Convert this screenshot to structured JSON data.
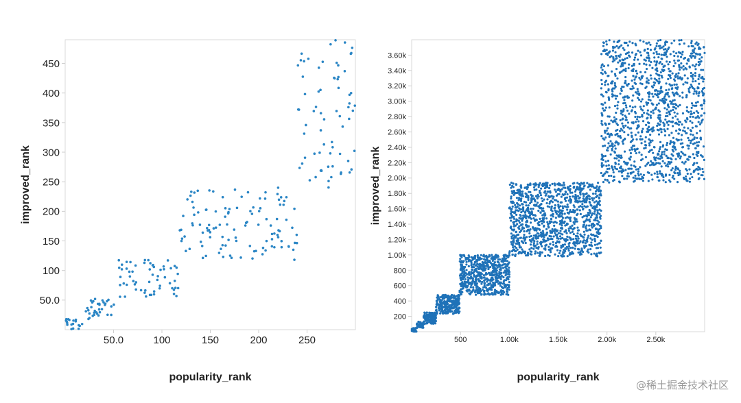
{
  "colors": {
    "point": "#2b86c5",
    "point_dark": "#1f72b8",
    "frame": "#d9d9d9",
    "tick": "#cfcfcf"
  },
  "watermark": "@稀土掘金技术社区",
  "chart_data": [
    {
      "type": "scatter",
      "xlabel": "popularity_rank",
      "ylabel": "improved_rank",
      "xlim": [
        0,
        300
      ],
      "ylim": [
        0,
        490
      ],
      "x_ticks": [
        {
          "value": 50,
          "label": "50.0"
        },
        {
          "value": 100,
          "label": "100"
        },
        {
          "value": 150,
          "label": "150"
        },
        {
          "value": 200,
          "label": "200"
        },
        {
          "value": 250,
          "label": "250"
        }
      ],
      "y_ticks": [
        {
          "value": 50,
          "label": "50.0"
        },
        {
          "value": 100,
          "label": "100"
        },
        {
          "value": 150,
          "label": "150"
        },
        {
          "value": 200,
          "label": "200"
        },
        {
          "value": 250,
          "label": "250"
        },
        {
          "value": 300,
          "label": "300"
        },
        {
          "value": 350,
          "label": "350"
        },
        {
          "value": 400,
          "label": "400"
        },
        {
          "value": 450,
          "label": "450"
        }
      ],
      "clusters": [
        {
          "x_range": [
            0,
            18
          ],
          "y_range": [
            0,
            18
          ],
          "count": 18
        },
        {
          "x_range": [
            18,
            52
          ],
          "y_range": [
            18,
            52
          ],
          "count": 34
        },
        {
          "x_range": [
            55,
            118
          ],
          "y_range": [
            55,
            118
          ],
          "count": 60
        },
        {
          "x_range": [
            118,
            240
          ],
          "y_range": [
            118,
            240
          ],
          "count": 115
        },
        {
          "x_range": [
            240,
            300
          ],
          "y_range": [
            240,
            490
          ],
          "count": 70
        }
      ],
      "seed": 7
    },
    {
      "type": "scatter",
      "xlabel": "popularity_rank",
      "ylabel": "improved_rank",
      "xlim": [
        0,
        3000
      ],
      "ylim": [
        0,
        3800
      ],
      "x_ticks": [
        {
          "value": 500,
          "label": "500"
        },
        {
          "value": 1000,
          "label": "1.00k"
        },
        {
          "value": 1500,
          "label": "1.50k"
        },
        {
          "value": 2000,
          "label": "2.00k"
        },
        {
          "value": 2500,
          "label": "2.50k"
        }
      ],
      "y_ticks": [
        {
          "value": 200,
          "label": "200"
        },
        {
          "value": 400,
          "label": "400"
        },
        {
          "value": 600,
          "label": "600"
        },
        {
          "value": 800,
          "label": "800"
        },
        {
          "value": 1000,
          "label": "1.00k"
        },
        {
          "value": 1200,
          "label": "1.20k"
        },
        {
          "value": 1400,
          "label": "1.40k"
        },
        {
          "value": 1600,
          "label": "1.60k"
        },
        {
          "value": 1800,
          "label": "1.80k"
        },
        {
          "value": 2000,
          "label": "2.00k"
        },
        {
          "value": 2200,
          "label": "2.20k"
        },
        {
          "value": 2400,
          "label": "2.40k"
        },
        {
          "value": 2600,
          "label": "2.60k"
        },
        {
          "value": 2800,
          "label": "2.80k"
        },
        {
          "value": 3000,
          "label": "3.00k"
        },
        {
          "value": 3200,
          "label": "3.20k"
        },
        {
          "value": 3400,
          "label": "3.40k"
        },
        {
          "value": 3600,
          "label": "3.60k"
        }
      ],
      "clusters": [
        {
          "x_range": [
            0,
            50
          ],
          "y_range": [
            0,
            50
          ],
          "count": 30
        },
        {
          "x_range": [
            50,
            120
          ],
          "y_range": [
            50,
            130
          ],
          "count": 45
        },
        {
          "x_range": [
            120,
            250
          ],
          "y_range": [
            100,
            250
          ],
          "count": 120
        },
        {
          "x_range": [
            250,
            490
          ],
          "y_range": [
            230,
            480
          ],
          "count": 260
        },
        {
          "x_range": [
            490,
            1000
          ],
          "y_range": [
            480,
            1000
          ],
          "count": 650
        },
        {
          "x_range": [
            1000,
            1940
          ],
          "y_range": [
            980,
            1940
          ],
          "count": 1150
        },
        {
          "x_range": [
            1940,
            3000
          ],
          "y_range": [
            1940,
            3800
          ],
          "count": 1300
        }
      ],
      "seed": 11
    }
  ]
}
